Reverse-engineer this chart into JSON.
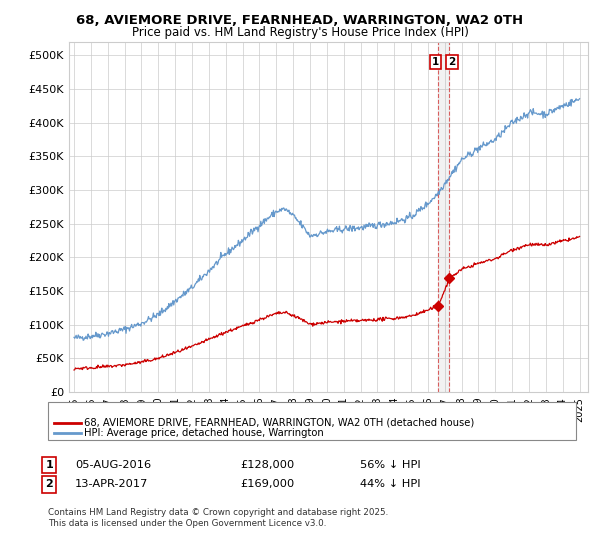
{
  "title1": "68, AVIEMORE DRIVE, FEARNHEAD, WARRINGTON, WA2 0TH",
  "title2": "Price paid vs. HM Land Registry's House Price Index (HPI)",
  "ylabel_ticks": [
    "£0",
    "£50K",
    "£100K",
    "£150K",
    "£200K",
    "£250K",
    "£300K",
    "£350K",
    "£400K",
    "£450K",
    "£500K"
  ],
  "ytick_vals": [
    0,
    50000,
    100000,
    150000,
    200000,
    250000,
    300000,
    350000,
    400000,
    450000,
    500000
  ],
  "ylim": [
    0,
    520000
  ],
  "xlim_start": 1994.7,
  "xlim_end": 2025.5,
  "hpi_color": "#6699cc",
  "price_color": "#cc0000",
  "dashed_color": "#cc0000",
  "vline_color": "#ddaaaa",
  "legend_label_price": "68, AVIEMORE DRIVE, FEARNHEAD, WARRINGTON, WA2 0TH (detached house)",
  "legend_label_hpi": "HPI: Average price, detached house, Warrington",
  "sale1_date": "05-AUG-2016",
  "sale1_price": 128000,
  "sale1_pct": "56%",
  "sale2_date": "13-APR-2017",
  "sale2_price": 169000,
  "sale2_pct": "44%",
  "footer": "Contains HM Land Registry data © Crown copyright and database right 2025.\nThis data is licensed under the Open Government Licence v3.0.",
  "sale1_x": 2016.59,
  "sale2_x": 2017.28,
  "background_color": "#ffffff",
  "grid_color": "#cccccc"
}
